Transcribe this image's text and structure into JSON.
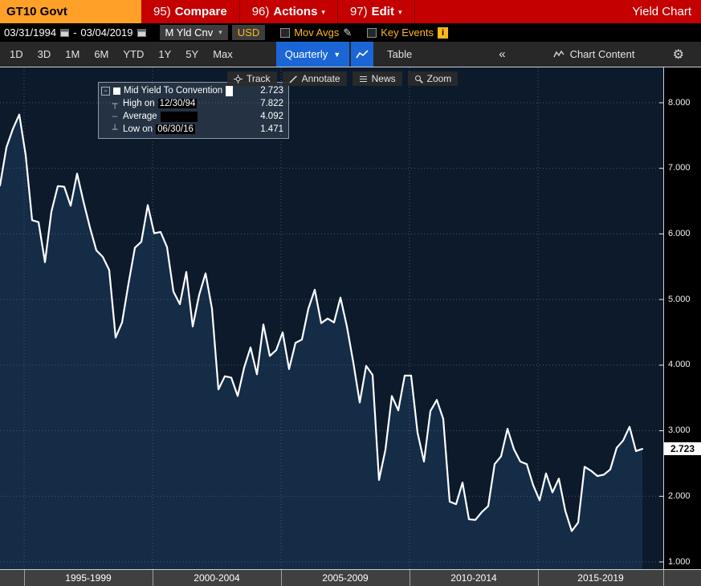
{
  "topbar": {
    "ticker": "GT10 Govt",
    "title": "Yield Chart",
    "menus": [
      {
        "num": "95)",
        "label": "Compare",
        "arrow": ""
      },
      {
        "num": "96)",
        "label": "Actions",
        "arrow": "▾"
      },
      {
        "num": "97)",
        "label": "Edit",
        "arrow": "▾"
      }
    ]
  },
  "controls": {
    "date_from": "03/31/1994",
    "date_separator": "-",
    "date_to": "03/04/2019",
    "yield_type": "M Yld Cnv",
    "yield_type_arrow": "▾",
    "currency": "USD",
    "mov_avgs": "Mov Avgs",
    "pencil": "✎",
    "key_events": "Key Events",
    "info": "i"
  },
  "toolbar": {
    "periods": [
      "1D",
      "3D",
      "1M",
      "6M",
      "YTD",
      "1Y",
      "5Y",
      "Max"
    ],
    "frequency": "Quarterly",
    "frequency_arrow": "▼",
    "table": "Table",
    "collapse": "«",
    "chart_content": "Chart Content",
    "gear": "⚙"
  },
  "chart_toolbar": {
    "track": "Track",
    "annotate": "Annotate",
    "news": "News",
    "zoom": "Zoom"
  },
  "legend": {
    "expander": "-",
    "series_label": "Mid Yield To Convention",
    "series_value": "2.723",
    "high_icon": "┬",
    "high_label": "High on",
    "high_date": "12/30/94",
    "high_value": "7.822",
    "avg_icon": "┄",
    "avg_label": "Average",
    "avg_value": "4.092",
    "low_icon": "┴",
    "low_label": "Low on",
    "low_date": "06/30/16",
    "low_value": "1.471"
  },
  "axis": {
    "y_ticks": [
      "8.000",
      "7.000",
      "6.000",
      "5.000",
      "4.000",
      "3.000",
      "2.000",
      "1.000"
    ],
    "x_labels": [
      "1995-1999",
      "2000-2004",
      "2005-2009",
      "2010-2014",
      "2015-2019"
    ],
    "last_value": "2.723"
  },
  "chart_data": {
    "type": "area",
    "title": "GT10 Govt - Mid Yield To Convention",
    "frequency": "quarterly",
    "x_start": "1994-03-31",
    "x_end": "2019-03-04",
    "ylim": [
      0.88,
      8.54
    ],
    "y_gridlines": [
      1,
      2,
      3,
      4,
      5,
      6,
      7,
      8
    ],
    "x_gridline_years": [
      1995,
      2000,
      2005,
      2010,
      2015
    ],
    "line_color": "#ffffff",
    "fill_color": "#152c47",
    "background": "#0c1a2c",
    "grid_color": "#46586d",
    "values": [
      6.74,
      7.32,
      7.6,
      7.82,
      7.2,
      6.21,
      6.18,
      5.57,
      6.34,
      6.73,
      6.72,
      6.43,
      6.92,
      6.49,
      6.1,
      5.75,
      5.65,
      5.45,
      4.42,
      4.65,
      5.24,
      5.79,
      5.88,
      6.44,
      6.01,
      6.03,
      5.8,
      5.12,
      4.93,
      5.42,
      4.59,
      5.07,
      5.4,
      4.86,
      3.63,
      3.83,
      3.81,
      3.53,
      3.96,
      4.27,
      3.86,
      4.62,
      4.14,
      4.23,
      4.5,
      3.94,
      4.34,
      4.39,
      4.86,
      5.15,
      4.64,
      4.71,
      4.65,
      5.03,
      4.59,
      4.04,
      3.43,
      3.99,
      3.85,
      2.25,
      2.71,
      3.53,
      3.31,
      3.84,
      3.84,
      2.97,
      2.53,
      3.3,
      3.47,
      3.18,
      1.92,
      1.88,
      2.21,
      1.65,
      1.64,
      1.76,
      1.85,
      2.49,
      2.61,
      3.03,
      2.72,
      2.53,
      2.49,
      2.17,
      1.94,
      2.35,
      2.06,
      2.27,
      1.78,
      1.47,
      1.6,
      2.45,
      2.39,
      2.31,
      2.33,
      2.41,
      2.74,
      2.85,
      3.06,
      2.69,
      2.723
    ],
    "stats": {
      "last": 2.723,
      "high": 7.822,
      "high_date": "12/30/94",
      "average": 4.092,
      "low": 1.471,
      "low_date": "06/30/16"
    }
  }
}
